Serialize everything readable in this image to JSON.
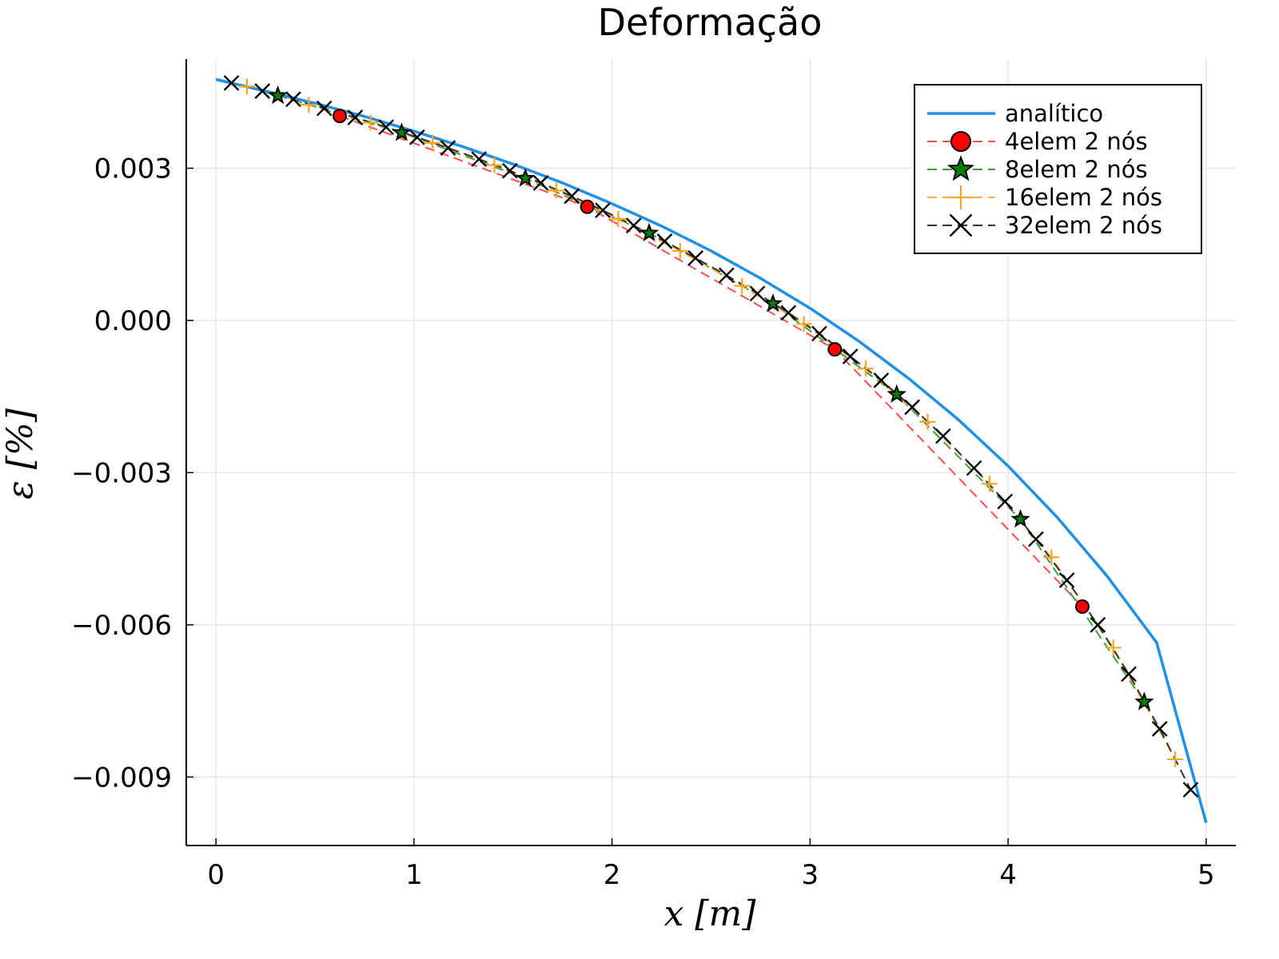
{
  "chart_data": {
    "type": "line",
    "title": "Deformação",
    "xlabel": "x [m]",
    "ylabel": "ε [%]",
    "xlim": [
      -0.15,
      5.15
    ],
    "ylim": [
      -0.01035,
      0.00515
    ],
    "x_ticks": [
      0,
      1,
      2,
      3,
      4,
      5
    ],
    "x_tick_labels": [
      "0",
      "1",
      "2",
      "3",
      "4",
      "5"
    ],
    "y_ticks": [
      0.003,
      0.0,
      -0.003,
      -0.006,
      -0.009
    ],
    "y_tick_labels": [
      "0.003",
      "0.000",
      "−0.003",
      "−0.006",
      "−0.009"
    ],
    "grid": true,
    "legend_position": "top-right",
    "series": [
      {
        "name": "analítico",
        "style": "solid",
        "marker": "none",
        "color": "#1e90e6",
        "x": [
          0,
          0.25,
          0.5,
          0.75,
          1.0,
          1.25,
          1.5,
          1.75,
          2.0,
          2.25,
          2.5,
          2.75,
          3.0,
          3.25,
          3.5,
          3.75,
          4.0,
          4.25,
          4.5,
          4.75,
          5.0
        ],
        "values": [
          0.00475,
          0.00452,
          0.00428,
          0.00402,
          0.00373,
          0.00342,
          0.00308,
          0.00271,
          0.0023,
          0.00186,
          0.00137,
          0.00083,
          0.00024,
          -0.00042,
          -0.00115,
          -0.00196,
          -0.00287,
          -0.00389,
          -0.00504,
          -0.00635,
          -0.0099
        ]
      },
      {
        "name": "4elem 2 nós",
        "style": "dashed",
        "marker": "circle",
        "color": "#ff0000",
        "line_color": "#ff4d4d",
        "x": [
          0.625,
          1.875,
          3.125,
          4.375
        ],
        "values": [
          0.00403,
          0.00224,
          -0.00057,
          -0.00564
        ]
      },
      {
        "name": "8elem 2 nós",
        "style": "dashed",
        "marker": "star",
        "color": "#008000",
        "line_color": "#3c9f3c",
        "x": [
          0.3125,
          0.9375,
          1.5625,
          2.1875,
          2.8125,
          3.4375,
          4.0625,
          4.6875
        ],
        "values": [
          0.00443,
          0.0037,
          0.0028,
          0.00172,
          0.00033,
          -0.00146,
          -0.00392,
          -0.00752
        ]
      },
      {
        "name": "16elem 2 nós",
        "style": "dashed",
        "marker": "plus",
        "color": "#f5a623",
        "line_color": "#f5b041",
        "x": [
          0.15625,
          0.46875,
          0.78125,
          1.09375,
          1.40625,
          1.71875,
          2.03125,
          2.34375,
          2.65625,
          2.96875,
          3.28125,
          3.59375,
          3.90625,
          4.21875,
          4.53125,
          4.84375
        ],
        "values": [
          0.00461,
          0.00425,
          0.0039,
          0.0035,
          0.00306,
          0.00256,
          0.002,
          0.00137,
          0.00068,
          -7e-05,
          -0.00095,
          -0.002,
          -0.00322,
          -0.00467,
          -0.00645,
          -0.00865
        ]
      },
      {
        "name": "32elem 2 nós",
        "style": "dashed",
        "marker": "x",
        "color": "#000000",
        "line_color": "#333333",
        "x": [
          0.078125,
          0.234375,
          0.390625,
          0.546875,
          0.703125,
          0.859375,
          1.015625,
          1.171875,
          1.328125,
          1.484375,
          1.640625,
          1.796875,
          1.953125,
          2.109375,
          2.265625,
          2.421875,
          2.578125,
          2.734375,
          2.890625,
          3.046875,
          3.203125,
          3.359375,
          3.515625,
          3.671875,
          3.828125,
          3.984375,
          4.140625,
          4.296875,
          4.453125,
          4.609375,
          4.765625,
          4.921875
        ],
        "values": [
          0.00468,
          0.00452,
          0.00436,
          0.00418,
          0.004,
          0.00381,
          0.00361,
          0.0034,
          0.00318,
          0.00295,
          0.00271,
          0.00245,
          0.00217,
          0.00187,
          0.00156,
          0.00123,
          0.00089,
          0.00053,
          0.00015,
          -0.00026,
          -0.00071,
          -0.00118,
          -0.00171,
          -0.00228,
          -0.00291,
          -0.00357,
          -0.00431,
          -0.00512,
          -0.006,
          -0.00697,
          -0.00805,
          -0.00925
        ]
      }
    ]
  }
}
